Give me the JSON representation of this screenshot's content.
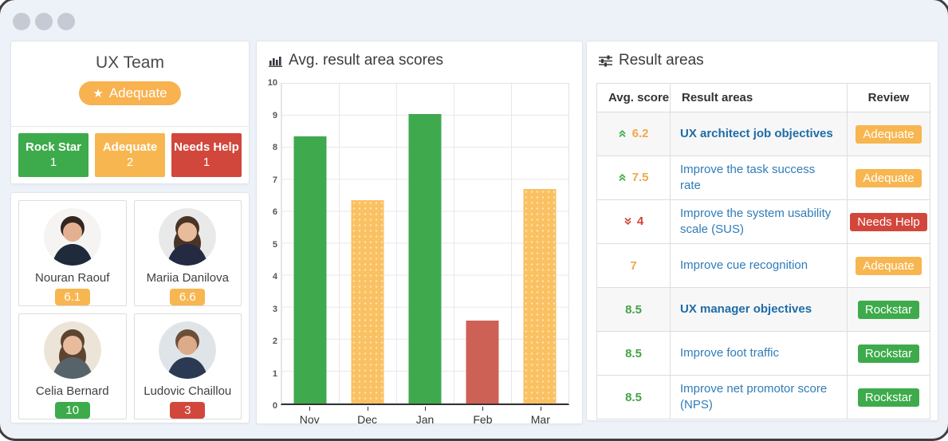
{
  "colors": {
    "page_bg": "#edf1f8",
    "panel_bg": "#ffffff",
    "green": "#3dab4b",
    "orange": "#f7b64f",
    "red": "#d2473c",
    "bar_green": "#3fa94d",
    "bar_orange": "#fac162",
    "bar_red": "#cd6155",
    "link_blue": "#2f7cb9",
    "link_blue_bold": "#1d6ca6"
  },
  "team_panel": {
    "title": "UX Team",
    "badge_label": "Adequate",
    "stats": [
      {
        "label": "Rock Star",
        "count": "1",
        "color": "green"
      },
      {
        "label": "Adequate",
        "count": "2",
        "color": "orange"
      },
      {
        "label": "Needs Help",
        "count": "1",
        "color": "red"
      }
    ]
  },
  "members": [
    {
      "name": "Nouran Raouf",
      "score": "6.1",
      "score_color": "orange",
      "avatar": {
        "bg": "#f5f4f2",
        "hair": "#33261f",
        "skin": "#e3b092",
        "suit": "#1f2a3a",
        "long_hair": false
      }
    },
    {
      "name": "Mariia Danilova",
      "score": "6.6",
      "score_color": "orange",
      "avatar": {
        "bg": "#e9e9ea",
        "hair": "#4a3426",
        "skin": "#e8bb9c",
        "suit": "#232a41",
        "long_hair": true
      }
    },
    {
      "name": "Celia Bernard",
      "score": "10",
      "score_color": "green",
      "avatar": {
        "bg": "#ece4d6",
        "hair": "#5d4430",
        "skin": "#e8bb9c",
        "suit": "#57636a",
        "long_hair": true
      }
    },
    {
      "name": "Ludovic Chaillou",
      "score": "3",
      "score_color": "red",
      "avatar": {
        "bg": "#dfe4e8",
        "hair": "#6b4f37",
        "skin": "#dcab89",
        "suit": "#2b3a52",
        "long_hair": false
      }
    }
  ],
  "chart_panel": {
    "title": "Avg. result area scores"
  },
  "chart_data": {
    "type": "bar",
    "title": "Avg. result area scores",
    "categories": [
      "Nov",
      "Dec",
      "Jan",
      "Feb",
      "Mar"
    ],
    "values": [
      8.35,
      6.35,
      9.05,
      2.6,
      6.7
    ],
    "bar_colors": [
      "green",
      "orange",
      "green",
      "red",
      "orange"
    ],
    "xlabel": "",
    "ylabel": "",
    "ylim": [
      0,
      10
    ],
    "yticks": [
      "10",
      "9",
      "8",
      "7",
      "6",
      "5",
      "4",
      "3",
      "2",
      "1",
      "0"
    ],
    "grid": true,
    "legend": false
  },
  "result_panel": {
    "title": "Result areas",
    "headers": [
      "Avg. score",
      "Result areas",
      "Review"
    ],
    "rows": [
      {
        "score": "6.2",
        "trend": "up",
        "score_color": "orange",
        "area": "UX architect job objectives",
        "review": "Adequate",
        "review_color": "orange",
        "group": true
      },
      {
        "score": "7.5",
        "trend": "up",
        "score_color": "orange",
        "area": "Improve the task success rate",
        "review": "Adequate",
        "review_color": "orange",
        "group": false
      },
      {
        "score": "4",
        "trend": "down",
        "score_color": "red",
        "area": "Improve the system usability scale (SUS)",
        "review": "Needs Help",
        "review_color": "red",
        "group": false
      },
      {
        "score": "7",
        "trend": "none",
        "score_color": "orange",
        "area": "Improve cue recognition",
        "review": "Adequate",
        "review_color": "orange",
        "group": false
      },
      {
        "score": "8.5",
        "trend": "none",
        "score_color": "green",
        "area": "UX manager objectives",
        "review": "Rockstar",
        "review_color": "green",
        "group": true
      },
      {
        "score": "8.5",
        "trend": "none",
        "score_color": "green",
        "area": "Improve foot traffic",
        "review": "Rockstar",
        "review_color": "green",
        "group": false
      },
      {
        "score": "8.5",
        "trend": "none",
        "score_color": "green",
        "area": "Improve net promotor score (NPS)",
        "review": "Rockstar",
        "review_color": "green",
        "group": false
      }
    ]
  }
}
